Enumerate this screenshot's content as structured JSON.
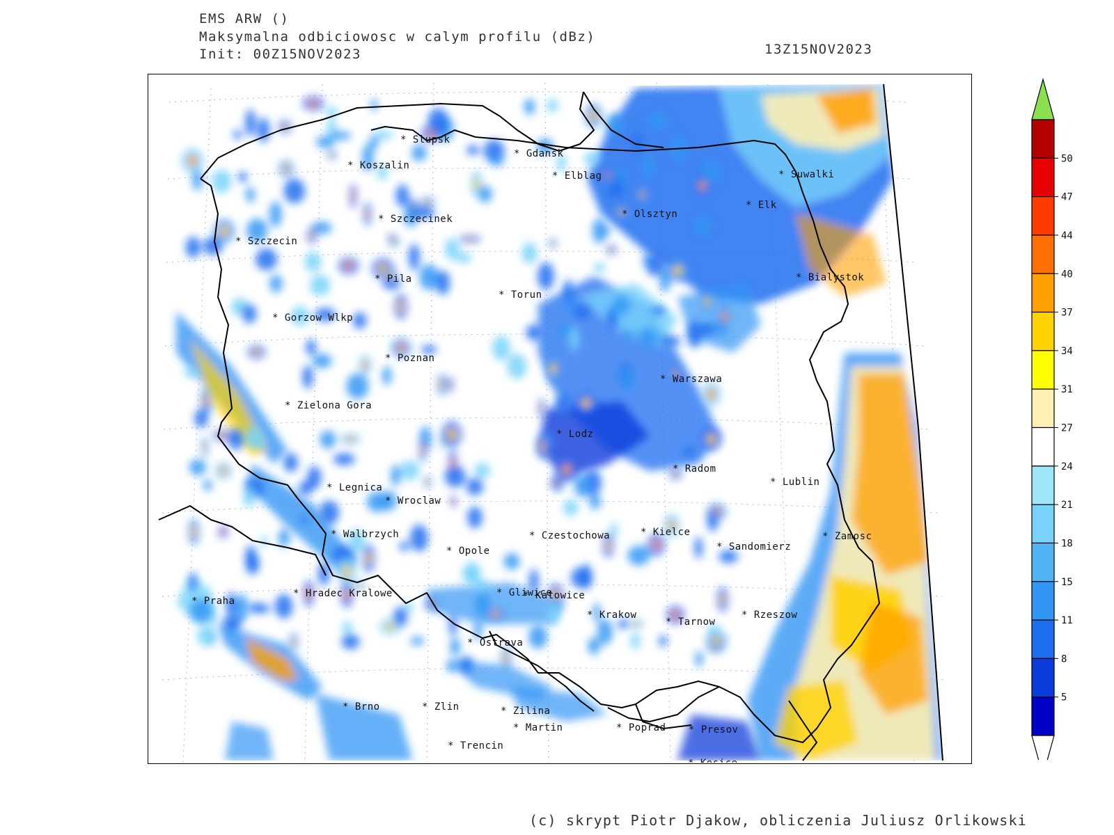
{
  "header": {
    "line1": "EMS ARW ()",
    "line2": "Maksymalna odbiciowosc w calym profilu (dBz)",
    "line3": "Init: 00Z15NOV2023",
    "valid_time": "13Z15NOV2023"
  },
  "footer": {
    "credit": "(c) skrypt Piotr Djakow, obliczenia Juliusz Orlikowski"
  },
  "colorbar": {
    "levels": [
      "5",
      "8",
      "11",
      "15",
      "18",
      "21",
      "24",
      "27",
      "31",
      "34",
      "37",
      "40",
      "44",
      "47",
      "50"
    ],
    "colors": [
      "#0000c8",
      "#0a3cdc",
      "#1e6ef0",
      "#3296f5",
      "#50b4f5",
      "#78d2fa",
      "#a0e6fa",
      "#ffffff",
      "#fff0b4",
      "#ffff00",
      "#ffd200",
      "#ffa000",
      "#ff6e00",
      "#ff3c00",
      "#e60000",
      "#b40000"
    ],
    "over_color": "#8ce050",
    "under_color": "#ffffff"
  },
  "cities": [
    {
      "name": "Slupsk"
    },
    {
      "name": "Gdansk"
    },
    {
      "name": "Koszalin"
    },
    {
      "name": "Elblag"
    },
    {
      "name": "Suwalki"
    },
    {
      "name": "Elk"
    },
    {
      "name": "Olsztyn"
    },
    {
      "name": "Szczecinek"
    },
    {
      "name": "Szczecin"
    },
    {
      "name": "Bialystok"
    },
    {
      "name": "Pila"
    },
    {
      "name": "Torun"
    },
    {
      "name": "Gorzow Wlkp"
    },
    {
      "name": "Poznan"
    },
    {
      "name": "Warszawa"
    },
    {
      "name": "Zielona Gora"
    },
    {
      "name": "Lodz"
    },
    {
      "name": "Radom"
    },
    {
      "name": "Lublin"
    },
    {
      "name": "Legnica"
    },
    {
      "name": "Wroclaw"
    },
    {
      "name": "Walbrzych"
    },
    {
      "name": "Czestochowa"
    },
    {
      "name": "Kielce"
    },
    {
      "name": "Zamosc"
    },
    {
      "name": "Opole"
    },
    {
      "name": "Sandomierz"
    },
    {
      "name": "Praha"
    },
    {
      "name": "Hradec Kralowe"
    },
    {
      "name": "Gliwice"
    },
    {
      "name": "Katowice"
    },
    {
      "name": "Krakow"
    },
    {
      "name": "Tarnow"
    },
    {
      "name": "Rzeszow"
    },
    {
      "name": "Ostrava"
    },
    {
      "name": "Brno"
    },
    {
      "name": "Zlin"
    },
    {
      "name": "Zilina"
    },
    {
      "name": "Martin"
    },
    {
      "name": "Poprad"
    },
    {
      "name": "Presov"
    },
    {
      "name": "Trencin"
    },
    {
      "name": "Kosice"
    }
  ]
}
